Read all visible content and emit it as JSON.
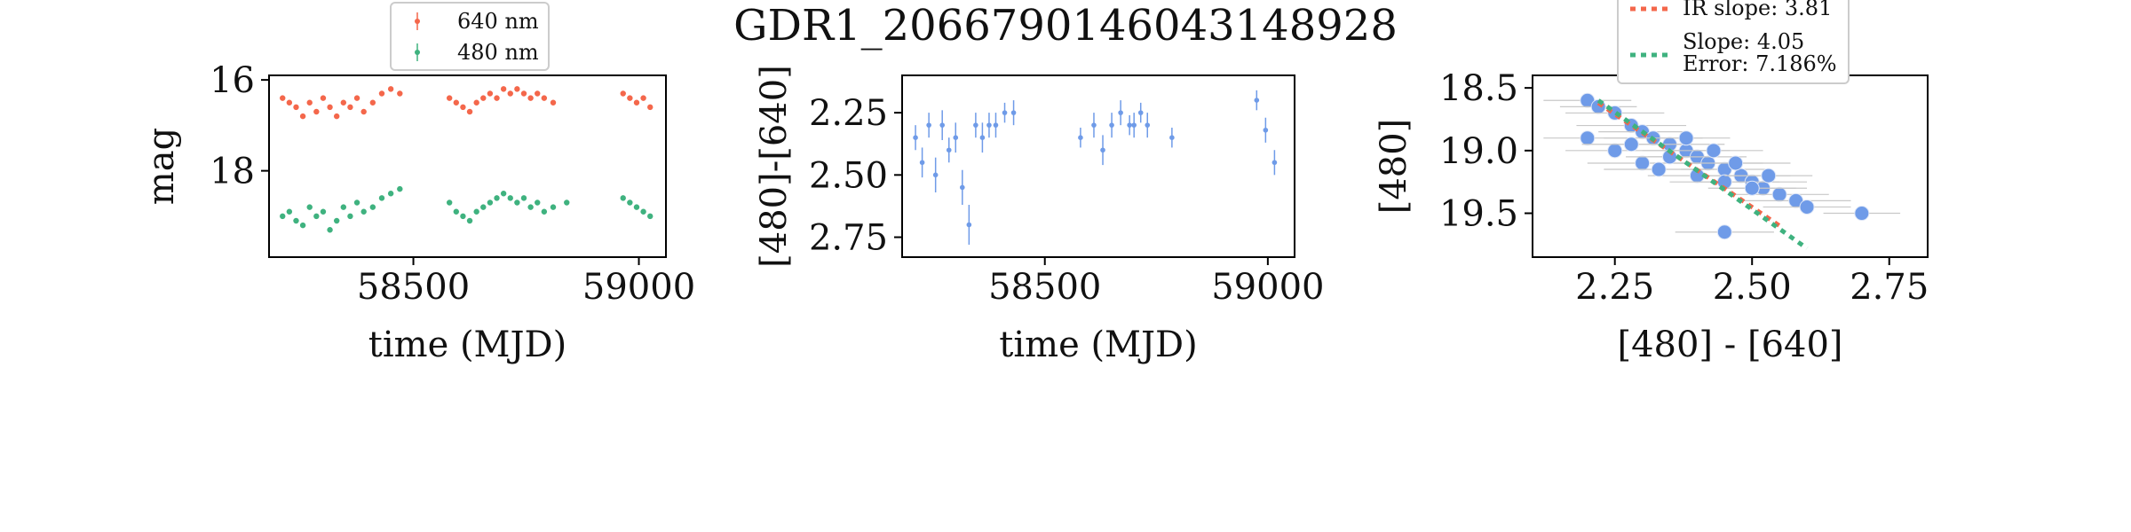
{
  "title": "GDR1_2066790146043148928",
  "chart_data": [
    {
      "type": "scatter",
      "panel": "light-curve",
      "xlabel": "time (MJD)",
      "ylabel": "mag",
      "xlim": [
        58180,
        59060
      ],
      "ylim": [
        19.9,
        15.9
      ],
      "y_inverted": true,
      "xticks": [
        58500,
        59000
      ],
      "yticks": [
        16,
        18
      ],
      "legend": {
        "placement": "top",
        "entries": [
          "640 nm",
          "480 nm"
        ]
      },
      "series": [
        {
          "name": "640 nm",
          "color": "#f4674b",
          "x": [
            58210,
            58225,
            58240,
            58255,
            58270,
            58285,
            58300,
            58315,
            58330,
            58345,
            58360,
            58375,
            58390,
            58410,
            58430,
            58450,
            58470,
            58580,
            58595,
            58610,
            58625,
            58640,
            58655,
            58670,
            58685,
            58700,
            58715,
            58730,
            58745,
            58760,
            58775,
            58790,
            58810,
            58965,
            58980,
            58995,
            59010,
            59025
          ],
          "y": [
            16.4,
            16.5,
            16.6,
            16.8,
            16.5,
            16.7,
            16.4,
            16.6,
            16.8,
            16.5,
            16.6,
            16.4,
            16.7,
            16.5,
            16.3,
            16.2,
            16.3,
            16.4,
            16.5,
            16.6,
            16.7,
            16.5,
            16.4,
            16.3,
            16.4,
            16.2,
            16.3,
            16.2,
            16.3,
            16.4,
            16.3,
            16.4,
            16.5,
            16.3,
            16.4,
            16.5,
            16.4,
            16.6
          ]
        },
        {
          "name": "480 nm",
          "color": "#3fb27f",
          "x": [
            58210,
            58225,
            58240,
            58255,
            58270,
            58285,
            58300,
            58315,
            58330,
            58345,
            58360,
            58375,
            58390,
            58410,
            58430,
            58450,
            58470,
            58580,
            58595,
            58610,
            58625,
            58640,
            58655,
            58670,
            58685,
            58700,
            58715,
            58730,
            58745,
            58760,
            58775,
            58790,
            58810,
            58840,
            58965,
            58980,
            58995,
            59010,
            59025
          ],
          "y": [
            19.0,
            18.9,
            19.1,
            19.2,
            18.8,
            19.0,
            18.9,
            19.3,
            19.1,
            18.8,
            19.0,
            18.7,
            18.9,
            18.8,
            18.6,
            18.5,
            18.4,
            18.7,
            18.9,
            19.0,
            19.1,
            18.9,
            18.8,
            18.7,
            18.6,
            18.5,
            18.6,
            18.7,
            18.6,
            18.8,
            18.7,
            18.9,
            18.8,
            18.7,
            18.6,
            18.7,
            18.8,
            18.9,
            19.0
          ]
        }
      ]
    },
    {
      "type": "scatter",
      "panel": "color-curve",
      "xlabel": "time (MJD)",
      "ylabel": "[480]-[640]",
      "xlim": [
        58180,
        59060
      ],
      "ylim": [
        2.83,
        2.1
      ],
      "y_inverted": true,
      "xticks": [
        58500,
        59000
      ],
      "yticks": [
        2.25,
        2.5,
        2.75
      ],
      "series": [
        {
          "color": "#6f9be8",
          "x": [
            58210,
            58225,
            58240,
            58255,
            58270,
            58285,
            58300,
            58315,
            58330,
            58345,
            58360,
            58375,
            58390,
            58410,
            58430,
            58580,
            58610,
            58630,
            58650,
            58670,
            58690,
            58700,
            58715,
            58730,
            58785,
            58975,
            58995,
            59015
          ],
          "y": [
            2.35,
            2.45,
            2.3,
            2.5,
            2.3,
            2.4,
            2.35,
            2.55,
            2.7,
            2.3,
            2.35,
            2.3,
            2.3,
            2.25,
            2.25,
            2.35,
            2.3,
            2.4,
            2.3,
            2.25,
            2.3,
            2.3,
            2.25,
            2.3,
            2.35,
            2.2,
            2.32,
            2.45
          ],
          "err": [
            0.05,
            0.06,
            0.05,
            0.07,
            0.06,
            0.05,
            0.06,
            0.07,
            0.08,
            0.05,
            0.06,
            0.05,
            0.05,
            0.04,
            0.05,
            0.04,
            0.05,
            0.06,
            0.05,
            0.05,
            0.04,
            0.05,
            0.04,
            0.05,
            0.04,
            0.04,
            0.05,
            0.05
          ]
        }
      ]
    },
    {
      "type": "scatter",
      "panel": "color-magnitude",
      "xlabel": "[480] - [640]",
      "ylabel": "[480]",
      "xlim": [
        2.1,
        2.82
      ],
      "ylim": [
        19.85,
        18.4
      ],
      "y_inverted": true,
      "xticks": [
        2.25,
        2.5,
        2.75
      ],
      "yticks": [
        18.5,
        19.0,
        19.5
      ],
      "legend": {
        "placement": "top",
        "entries": [
          {
            "label": "IR slope: 3.81",
            "color": "#f4674b",
            "style": "dotted"
          },
          {
            "label": "Slope: 4.05",
            "label2": "Error: 7.186%",
            "color": "#3fb27f",
            "style": "dotted"
          }
        ]
      },
      "series": [
        {
          "color": "#6f9be8",
          "x": [
            2.2,
            2.22,
            2.25,
            2.28,
            2.3,
            2.32,
            2.35,
            2.38,
            2.4,
            2.42,
            2.45,
            2.48,
            2.5,
            2.52,
            2.55,
            2.58,
            2.6,
            2.7,
            2.2,
            2.25,
            2.3,
            2.35,
            2.4,
            2.45,
            2.5,
            2.28,
            2.33,
            2.38,
            2.43,
            2.47,
            2.53,
            2.45
          ],
          "y": [
            18.6,
            18.65,
            18.7,
            18.8,
            18.85,
            18.9,
            18.95,
            19.0,
            19.05,
            19.1,
            19.15,
            19.2,
            19.25,
            19.3,
            19.35,
            19.4,
            19.45,
            19.5,
            18.9,
            19.0,
            19.1,
            19.05,
            19.2,
            19.25,
            19.3,
            18.95,
            19.15,
            18.9,
            19.0,
            19.1,
            19.2,
            19.65
          ],
          "xerr": [
            0.08,
            0.07,
            0.09,
            0.1,
            0.08,
            0.09,
            0.1,
            0.08,
            0.09,
            0.1,
            0.08,
            0.09,
            0.1,
            0.08,
            0.09,
            0.1,
            0.08,
            0.07,
            0.08,
            0.09,
            0.1,
            0.08,
            0.09,
            0.1,
            0.08,
            0.09,
            0.1,
            0.08,
            0.09,
            0.1,
            0.08,
            0.09
          ]
        }
      ],
      "lines": [
        {
          "name": "IR slope: 3.81",
          "color": "#f4674b",
          "x": [
            2.22,
            2.55
          ],
          "y": [
            18.62,
            19.6
          ]
        },
        {
          "name": "Slope: 4.05",
          "color": "#3fb27f",
          "x": [
            2.22,
            2.6
          ],
          "y": [
            18.6,
            19.78
          ]
        }
      ]
    }
  ]
}
